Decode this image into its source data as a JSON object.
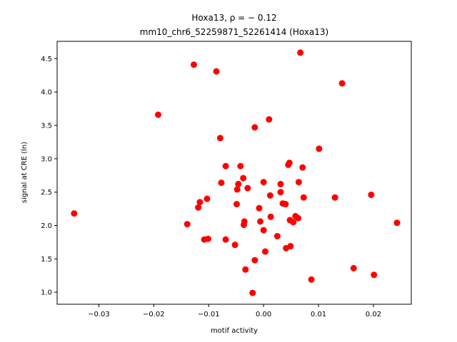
{
  "chart_data": {
    "type": "scatter",
    "title_line1": "Hoxa13, ρ = − 0.12",
    "title_line2": "mm10_chr6_52259871_52261414 (Hoxa13)",
    "xlabel": "motif activity",
    "ylabel": "signal at CRE (ln)",
    "xlim": [
      -0.0376,
      0.0269
    ],
    "ylim": [
      0.82,
      4.76
    ],
    "xticks": [
      -0.03,
      -0.02,
      -0.01,
      0.0,
      0.01,
      0.02
    ],
    "xtick_labels": [
      "−0.03",
      "−0.02",
      "−0.01",
      "0.00",
      "0.01",
      "0.02"
    ],
    "yticks": [
      1.0,
      1.5,
      2.0,
      2.5,
      3.0,
      3.5,
      4.0,
      4.5
    ],
    "ytick_labels": [
      "1.0",
      "1.5",
      "2.0",
      "2.5",
      "3.0",
      "3.5",
      "4.0",
      "4.5"
    ],
    "marker_color": "#ff0000",
    "grid": false,
    "points": [
      {
        "x": -0.0345,
        "y": 2.18
      },
      {
        "x": -0.0192,
        "y": 3.66
      },
      {
        "x": -0.0139,
        "y": 2.02
      },
      {
        "x": -0.0127,
        "y": 4.41
      },
      {
        "x": -0.0119,
        "y": 2.27
      },
      {
        "x": -0.0116,
        "y": 2.35
      },
      {
        "x": -0.0108,
        "y": 1.79
      },
      {
        "x": -0.0103,
        "y": 2.4
      },
      {
        "x": -0.0101,
        "y": 1.8
      },
      {
        "x": -0.0086,
        "y": 4.31
      },
      {
        "x": -0.0079,
        "y": 3.31
      },
      {
        "x": -0.0077,
        "y": 2.64
      },
      {
        "x": -0.0069,
        "y": 2.89
      },
      {
        "x": -0.0069,
        "y": 1.79
      },
      {
        "x": -0.0052,
        "y": 1.71
      },
      {
        "x": -0.0049,
        "y": 2.32
      },
      {
        "x": -0.0048,
        "y": 2.54
      },
      {
        "x": -0.0046,
        "y": 2.62
      },
      {
        "x": -0.0042,
        "y": 2.89
      },
      {
        "x": -0.0037,
        "y": 2.71
      },
      {
        "x": -0.0036,
        "y": 2.01
      },
      {
        "x": -0.0035,
        "y": 2.06
      },
      {
        "x": -0.0033,
        "y": 1.34
      },
      {
        "x": -0.0029,
        "y": 2.56
      },
      {
        "x": -0.002,
        "y": 0.99
      },
      {
        "x": -0.0016,
        "y": 3.47
      },
      {
        "x": -0.0016,
        "y": 1.48
      },
      {
        "x": -0.0008,
        "y": 2.26
      },
      {
        "x": -0.0006,
        "y": 2.06
      },
      {
        "x": 0.0,
        "y": 2.65
      },
      {
        "x": 0.0,
        "y": 1.93
      },
      {
        "x": 0.0003,
        "y": 1.61
      },
      {
        "x": 0.001,
        "y": 3.59
      },
      {
        "x": 0.0012,
        "y": 2.45
      },
      {
        "x": 0.0013,
        "y": 2.13
      },
      {
        "x": 0.0025,
        "y": 1.84
      },
      {
        "x": 0.0031,
        "y": 2.62
      },
      {
        "x": 0.0031,
        "y": 2.5
      },
      {
        "x": 0.0035,
        "y": 2.33
      },
      {
        "x": 0.004,
        "y": 2.32
      },
      {
        "x": 0.0041,
        "y": 1.66
      },
      {
        "x": 0.0045,
        "y": 2.91
      },
      {
        "x": 0.0047,
        "y": 2.94
      },
      {
        "x": 0.0048,
        "y": 2.08
      },
      {
        "x": 0.0049,
        "y": 1.69
      },
      {
        "x": 0.0054,
        "y": 2.05
      },
      {
        "x": 0.0058,
        "y": 2.14
      },
      {
        "x": 0.0063,
        "y": 2.11
      },
      {
        "x": 0.0064,
        "y": 2.65
      },
      {
        "x": 0.0067,
        "y": 4.59
      },
      {
        "x": 0.0071,
        "y": 2.87
      },
      {
        "x": 0.0073,
        "y": 2.42
      },
      {
        "x": 0.0087,
        "y": 1.19
      },
      {
        "x": 0.0101,
        "y": 3.15
      },
      {
        "x": 0.013,
        "y": 2.42
      },
      {
        "x": 0.0143,
        "y": 4.13
      },
      {
        "x": 0.0164,
        "y": 1.36
      },
      {
        "x": 0.0196,
        "y": 2.46
      },
      {
        "x": 0.0201,
        "y": 1.26
      },
      {
        "x": 0.0243,
        "y": 2.04
      }
    ]
  }
}
